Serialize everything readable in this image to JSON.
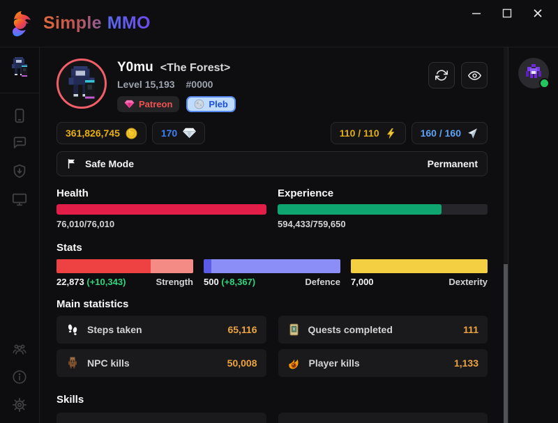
{
  "titlebar": {
    "app_name_primary": "Simple",
    "app_name_secondary": "MMO"
  },
  "player": {
    "name": "Y0mu",
    "guild_tag": "<The Forest>",
    "level": "Level 15,193",
    "player_id": "#0000",
    "badges": {
      "patreon": "Patreon",
      "pleb": "Pleb"
    }
  },
  "currencies": {
    "gold": "361,826,745",
    "diamonds": "170",
    "energy": "110 / 110",
    "quest_points": "160 / 160"
  },
  "safe_mode": {
    "label": "Safe Mode",
    "status": "Permanent"
  },
  "bars": {
    "health": {
      "label": "Health",
      "value": "76,010/76,010",
      "pct": 100
    },
    "experience": {
      "label": "Experience",
      "value": "594,433/759,650",
      "pct": 78.2
    }
  },
  "stats": {
    "heading": "Stats",
    "items": [
      {
        "label": "Strength",
        "value": "22,873",
        "bonus": "(+10,343)",
        "base_pct": 68.9
      },
      {
        "label": "Defence",
        "value": "500",
        "bonus": "(+8,367)",
        "base_pct": 5.6
      },
      {
        "label": "Dexterity",
        "value": "7,000",
        "bonus": "",
        "base_pct": 100
      }
    ]
  },
  "main_statistics": {
    "heading": "Main statistics",
    "cards": [
      {
        "label": "Steps taken",
        "value": "65,116",
        "icon": "footsteps-icon"
      },
      {
        "label": "Quests completed",
        "value": "111",
        "icon": "quest-scroll-icon"
      },
      {
        "label": "NPC kills",
        "value": "50,008",
        "icon": "npc-monster-icon"
      },
      {
        "label": "Player kills",
        "value": "1,133",
        "icon": "fireball-icon"
      }
    ]
  },
  "skills": {
    "heading": "Skills"
  },
  "icons": {
    "titlebar": [
      "dragon-logo-icon",
      "minimize-icon",
      "maximize-icon",
      "close-icon"
    ],
    "sidebar": [
      "player-sprite-icon",
      "phone-icon",
      "chat-icon",
      "shield-download-icon",
      "desktop-icon",
      "community-icon",
      "info-icon",
      "settings-icon"
    ],
    "header": [
      "refresh-icon",
      "eye-icon"
    ],
    "currency": [
      "gold-coin-icon",
      "diamond-icon",
      "energy-bolt-icon",
      "quest-point-icon"
    ],
    "badges": [
      "patreon-gem-icon",
      "pleb-moon-icon"
    ],
    "other": [
      "flag-icon",
      "online-status-dot",
      "friend-avatar"
    ]
  },
  "colors": {
    "health_fill": "#e11d48",
    "experience_fill": "#0fa571",
    "strength_base": "#ee4141",
    "strength_bonus": "#f58b85",
    "defence_base": "#5b5bea",
    "defence_bonus": "#8b8ef6",
    "dexterity_base": "#f5cf42",
    "gold_text": "#e8b00e",
    "diamond_text": "#3b82f6",
    "energy_text": "#dfae12",
    "quest_text": "#5ea2f5",
    "bonus_text": "#2fd57f",
    "stat_value_amber": "#eda43e",
    "avatar_ring": "#f25f68",
    "online_dot": "#22c55e"
  }
}
